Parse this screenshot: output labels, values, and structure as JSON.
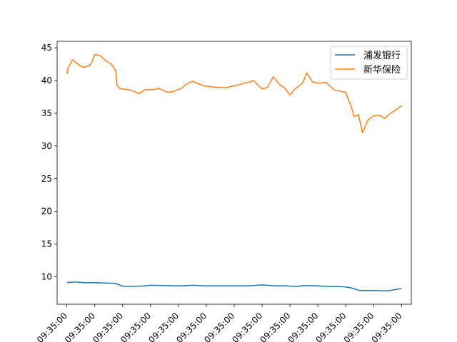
{
  "chart_data": {
    "type": "line",
    "title": "",
    "xlabel": "",
    "ylabel": "",
    "ylim": [
      5.8,
      46.0
    ],
    "yticks": [
      10,
      15,
      20,
      25,
      30,
      35,
      40,
      45
    ],
    "xlim": [
      -0.35,
      12.35
    ],
    "xtick_labels": [
      "09:35:00",
      "09:35:00",
      "09:35:00",
      "09:35:00",
      "09:35:00",
      "09:35:00",
      "09:35:00",
      "09:35:00",
      "09:35:00",
      "09:35:00",
      "09:35:00",
      "09:35:00",
      "09:35:00"
    ],
    "grid": false,
    "legend_position": "top-right",
    "series": [
      {
        "name": "浦发银行",
        "color": "#1f77b4",
        "x": [
          0,
          0.3,
          0.6,
          1,
          1.4,
          1.7,
          1.8,
          2,
          2.5,
          2.8,
          3,
          3.5,
          4,
          4.5,
          5,
          5.5,
          6,
          6.5,
          7,
          7.5,
          7.9,
          8.2,
          8.5,
          9,
          9.5,
          9.8,
          10,
          10.2,
          10.5,
          11,
          11.5,
          12
        ],
        "y": [
          9.1,
          9.2,
          9.1,
          9.1,
          9.05,
          9.0,
          8.9,
          8.55,
          8.55,
          8.6,
          8.7,
          8.65,
          8.6,
          8.7,
          8.6,
          8.6,
          8.6,
          8.6,
          8.75,
          8.6,
          8.6,
          8.5,
          8.65,
          8.6,
          8.5,
          8.5,
          8.45,
          8.3,
          7.9,
          7.9,
          7.85,
          8.2
        ]
      },
      {
        "name": "新华保险",
        "color": "#ff7f0e",
        "x": [
          0,
          0.05,
          0.2,
          0.4,
          0.6,
          0.8,
          0.9,
          1.0,
          1.2,
          1.4,
          1.6,
          1.75,
          1.8,
          1.9,
          2.3,
          2.6,
          2.8,
          3.1,
          3.3,
          3.6,
          3.8,
          4.1,
          4.3,
          4.5,
          4.9,
          5.3,
          5.7,
          6.0,
          6.4,
          6.7,
          7.0,
          7.2,
          7.4,
          7.6,
          7.8,
          8.0,
          8.2,
          8.45,
          8.6,
          8.8,
          9.0,
          9.3,
          9.6,
          9.8,
          10.0,
          10.1,
          10.2,
          10.3,
          10.45,
          10.6,
          10.8,
          11.0,
          11.2,
          11.4,
          11.6,
          11.8,
          12.0
        ],
        "y": [
          41.0,
          42.0,
          43.2,
          42.5,
          42.0,
          42.3,
          42.8,
          44.0,
          43.8,
          43.0,
          42.5,
          41.5,
          39.2,
          38.8,
          38.5,
          38.0,
          38.6,
          38.6,
          38.8,
          38.2,
          38.3,
          38.8,
          39.5,
          39.9,
          39.2,
          39.0,
          38.9,
          39.2,
          39.6,
          40.0,
          38.7,
          39.0,
          40.6,
          39.5,
          38.9,
          37.8,
          38.8,
          39.6,
          41.2,
          39.8,
          39.6,
          39.7,
          38.5,
          38.4,
          38.2,
          37.0,
          36.0,
          34.5,
          34.8,
          32.0,
          34.0,
          34.6,
          34.7,
          34.2,
          35.0,
          35.5,
          36.2
        ]
      }
    ]
  }
}
